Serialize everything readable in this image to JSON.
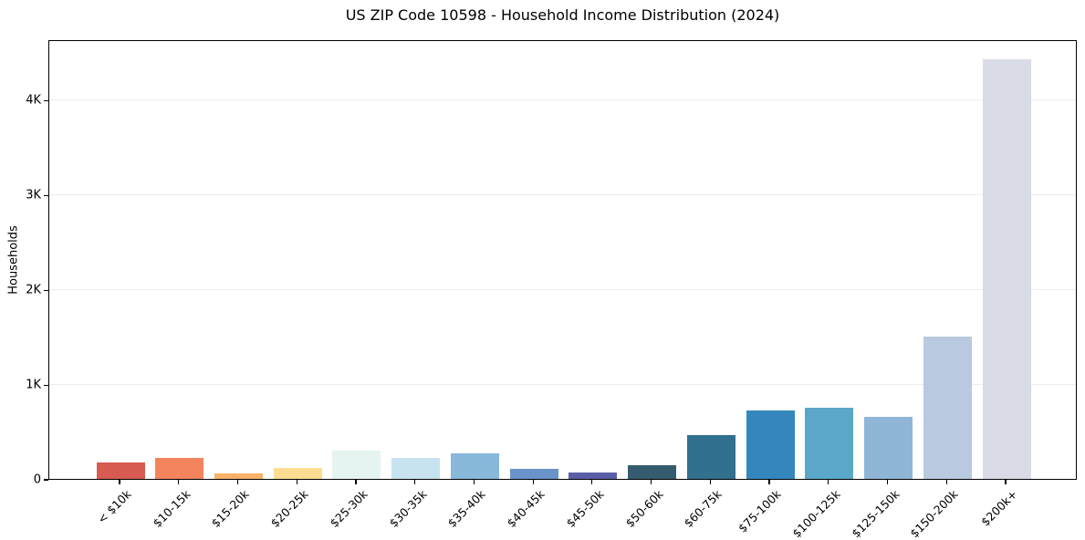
{
  "chart_data": {
    "type": "bar",
    "title": "US ZIP Code 10598 - Household Income Distribution (2024)",
    "xlabel": "",
    "ylabel": "Households",
    "categories": [
      "< $10k",
      "$10-15k",
      "$15-20k",
      "$20-25k",
      "$25-30k",
      "$30-35k",
      "$35-40k",
      "$40-45k",
      "$45-50k",
      "$50-60k",
      "$60-75k",
      "$75-100k",
      "$100-125k",
      "$125-150k",
      "$150-200k",
      "$200k+"
    ],
    "values": [
      175,
      225,
      60,
      120,
      300,
      220,
      265,
      105,
      70,
      140,
      465,
      725,
      755,
      650,
      1505,
      4430
    ],
    "bar_colors": [
      "#d85b51",
      "#f4845e",
      "#fbb169",
      "#fcdd92",
      "#e6f4f1",
      "#c6e3ef",
      "#88b8da",
      "#6b93cb",
      "#5b5ea6",
      "#365d6f",
      "#32708f",
      "#3387bd",
      "#5ba7c9",
      "#90b6d7",
      "#b9c9df",
      "#d9dbe7"
    ],
    "ylim": [
      0,
      4640
    ],
    "yticks": [
      {
        "value": 0,
        "label": "0"
      },
      {
        "value": 1000,
        "label": "1K"
      },
      {
        "value": 2000,
        "label": "2K"
      },
      {
        "value": 3000,
        "label": "3K"
      },
      {
        "value": 4000,
        "label": "4K"
      }
    ],
    "grid": "horizontal",
    "legend": "none",
    "background": "#ffffff",
    "axis_color": "#000000",
    "grid_color": "#ececec"
  }
}
